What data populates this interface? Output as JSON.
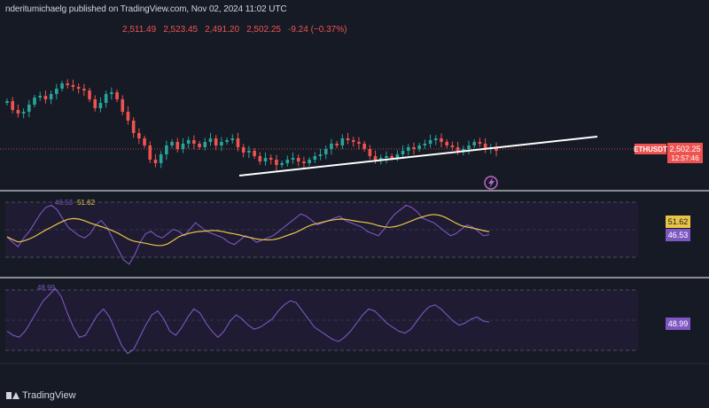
{
  "header": {
    "publisher": "nderitumichaelg published on TradingView.com, Nov 02, 2024 11:02 UTC"
  },
  "ohlc": {
    "open": "2,511.49",
    "high": "2,523.45",
    "low": "2,491.20",
    "close": "2,502.25",
    "change": "-9.24 (−0.37%)"
  },
  "price_axis": {
    "symbol": "ETHUSDT",
    "price": "2,502.25",
    "countdown": "12:57:46"
  },
  "rsi_pane": {
    "label_value": "46.53",
    "ma_value": "51.62",
    "axis_ma": "51.62",
    "axis_value": "46.53"
  },
  "osc_pane": {
    "label_value": "48.99",
    "axis_value": "48.99"
  },
  "footer": {
    "brand": "TradingView"
  },
  "colors": {
    "background": "#161a25",
    "up": "#26a69a",
    "down": "#ef5350",
    "rsi_line": "#7e57c2",
    "rsi_ma": "#e8c547",
    "trendline": "#ffffff",
    "band_fill": "#1e1b33"
  },
  "chart_data": [
    {
      "type": "candlestick",
      "symbol": "ETHUSDT",
      "last": 2502.25,
      "trendline": true,
      "relative_closes": [
        0.72,
        0.62,
        0.58,
        0.6,
        0.68,
        0.76,
        0.78,
        0.74,
        0.8,
        0.86,
        0.92,
        0.9,
        0.88,
        0.86,
        0.84,
        0.74,
        0.64,
        0.7,
        0.8,
        0.82,
        0.74,
        0.6,
        0.5,
        0.36,
        0.3,
        0.22,
        0.06,
        0.02,
        0.12,
        0.22,
        0.26,
        0.18,
        0.24,
        0.28,
        0.24,
        0.2,
        0.26,
        0.3,
        0.22,
        0.26,
        0.28,
        0.3,
        0.2,
        0.14,
        0.16,
        0.1,
        0.04,
        0.08,
        0.06,
        0.0,
        0.02,
        0.06,
        0.08,
        0.04,
        0.02,
        0.06,
        0.1,
        0.12,
        0.18,
        0.24,
        0.22,
        0.3,
        0.28,
        0.26,
        0.24,
        0.18,
        0.1,
        0.06,
        0.08,
        0.1,
        0.08,
        0.12,
        0.16,
        0.2,
        0.18,
        0.22,
        0.24,
        0.28,
        0.3,
        0.26,
        0.22,
        0.2,
        0.16,
        0.18,
        0.22,
        0.26,
        0.24,
        0.18,
        0.2,
        0.16
      ]
    },
    {
      "type": "line",
      "name": "RSI",
      "last": 46.53,
      "ma_last": 51.62,
      "series": [
        45,
        40,
        36,
        44,
        50,
        58,
        66,
        72,
        74,
        70,
        62,
        54,
        50,
        46,
        44,
        48,
        56,
        60,
        54,
        44,
        34,
        24,
        20,
        28,
        40,
        48,
        50,
        46,
        44,
        48,
        52,
        50,
        46,
        52,
        58,
        54,
        50,
        48,
        46,
        44,
        40,
        38,
        42,
        46,
        44,
        40,
        42,
        44,
        46,
        50,
        54,
        58,
        62,
        66,
        64,
        60,
        56,
        58,
        60,
        62,
        64,
        60,
        58,
        56,
        54,
        50,
        48,
        46,
        52,
        60,
        66,
        70,
        74,
        72,
        68,
        62,
        60,
        58,
        54,
        50,
        46,
        48,
        52,
        56,
        54,
        50,
        46,
        47
      ]
    },
    {
      "type": "line",
      "name": "Oscillator",
      "last": 48.99,
      "series": [
        40,
        36,
        34,
        40,
        50,
        60,
        70,
        76,
        82,
        74,
        58,
        44,
        34,
        36,
        46,
        56,
        62,
        54,
        40,
        26,
        18,
        22,
        34,
        46,
        56,
        60,
        52,
        40,
        36,
        44,
        54,
        62,
        58,
        48,
        40,
        34,
        40,
        50,
        56,
        52,
        46,
        42,
        44,
        48,
        52,
        60,
        66,
        70,
        68,
        60,
        52,
        44,
        40,
        36,
        32,
        30,
        34,
        40,
        48,
        56,
        62,
        60,
        54,
        48,
        44,
        40,
        38,
        42,
        50,
        58,
        64,
        66,
        62,
        56,
        50,
        46,
        48,
        52,
        54,
        50,
        49
      ]
    }
  ]
}
